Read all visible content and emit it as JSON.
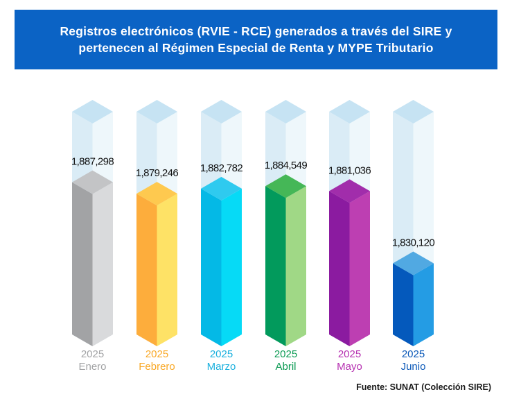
{
  "title_lines": [
    "Registros electrónicos (RVIE - RCE) generados a través del SIRE y",
    "pertenecen al Régimen Especial de Renta y MYPE Tributario"
  ],
  "source": "Fuente: SUNAT (Colección SIRE)",
  "chart_data": {
    "type": "bar",
    "title": "Registros electrónicos (RVIE - RCE) generados a través del SIRE y pertenecen al Régimen Especial de Renta y MYPE Tributario",
    "categories": [
      "2025 Enero",
      "2025 Febrero",
      "2025 Marzo",
      "2025 Abril",
      "2025 Mayo",
      "2025 Junio"
    ],
    "years": [
      "2025",
      "2025",
      "2025",
      "2025",
      "2025",
      "2025"
    ],
    "months": [
      "Enero",
      "Febrero",
      "Marzo",
      "Abril",
      "Mayo",
      "Junio"
    ],
    "values": [
      1887298,
      1879246,
      1882782,
      1884549,
      1881036,
      1830120
    ],
    "value_labels": [
      "1,887,298",
      "1,879,246",
      "1,882,782",
      "1,884,549",
      "1,881,036",
      "1,830,120"
    ],
    "ylim": [
      1780000,
      1937000
    ],
    "grid": false,
    "legend": "none",
    "colors": [
      {
        "front": "#a2a3a5",
        "side": "#d9dadc",
        "top": "#c3c4c6",
        "label": "#a2a3a5"
      },
      {
        "front": "#fdad3c",
        "side": "#fee266",
        "top": "#fec94f",
        "label": "#f9a825"
      },
      {
        "front": "#04b9e6",
        "side": "#06daf6",
        "top": "#2fcaef",
        "label": "#1ab0de"
      },
      {
        "front": "#029a5c",
        "side": "#a0d886",
        "top": "#45b757",
        "label": "#0a9a52"
      },
      {
        "front": "#8b1ba0",
        "side": "#bd3fb2",
        "top": "#a12dab",
        "label": "#b52fb0"
      },
      {
        "front": "#0459bc",
        "side": "#249ce4",
        "top": "#51a9e2",
        "label": "#0a58b8"
      }
    ],
    "ghost_colors": {
      "front": "#daecf6",
      "side": "#eef7fb",
      "top": "#c6e3f3"
    }
  }
}
